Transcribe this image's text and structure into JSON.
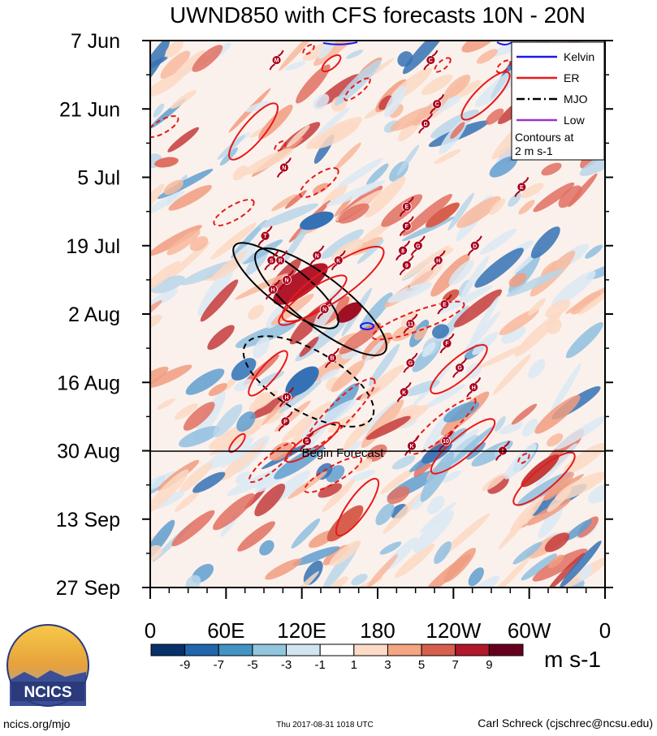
{
  "chart_data": {
    "type": "heatmap",
    "title": "UWND850 with CFS forecasts  10N - 20N",
    "x_range_deg": [
      0,
      360
    ],
    "x_ticks": [
      {
        "deg": 0,
        "label": "0"
      },
      {
        "deg": 60,
        "label": "60E"
      },
      {
        "deg": 120,
        "label": "120E"
      },
      {
        "deg": 180,
        "label": "180"
      },
      {
        "deg": 240,
        "label": "120W"
      },
      {
        "deg": 300,
        "label": "60W"
      },
      {
        "deg": 360,
        "label": "0"
      }
    ],
    "y_range": [
      "2017-06-07",
      "2017-09-27"
    ],
    "y_ticks": [
      {
        "date": "2017-06-07",
        "label": "7 Jun"
      },
      {
        "date": "2017-06-21",
        "label": "21 Jun"
      },
      {
        "date": "2017-07-05",
        "label": "5 Jul"
      },
      {
        "date": "2017-07-19",
        "label": "19 Jul"
      },
      {
        "date": "2017-08-02",
        "label": "2 Aug"
      },
      {
        "date": "2017-08-16",
        "label": "16 Aug"
      },
      {
        "date": "2017-08-30",
        "label": "30 Aug"
      },
      {
        "date": "2017-09-13",
        "label": "13 Sep"
      },
      {
        "date": "2017-09-27",
        "label": "27 Sep"
      }
    ],
    "forecast_start": {
      "date": "2017-08-30",
      "label": "Begin Forecast"
    },
    "legend": {
      "position": "top-right",
      "entries": [
        {
          "label": "Kelvin",
          "color": "#1a1ae6",
          "dash": "solid"
        },
        {
          "label": "ER",
          "color": "#e61a1a",
          "dash": "solid"
        },
        {
          "label": "MJO",
          "color": "#000000",
          "dash": "dashdot"
        },
        {
          "label": "Low",
          "color": "#9933cc",
          "dash": "solid"
        }
      ],
      "note_lines": [
        "Contours at",
        "2 m s-1"
      ]
    },
    "colorbar": {
      "unit": "m s-1",
      "labels": [
        "-9",
        "-7",
        "-5",
        "-3",
        "-1",
        "1",
        "3",
        "5",
        "7",
        "9"
      ],
      "colors": [
        "#08306b",
        "#2166ac",
        "#4393c3",
        "#92c5de",
        "#d1e5f0",
        "#ffffff",
        "#fddbc7",
        "#f4a582",
        "#d6604d",
        "#b2182b",
        "#67001f"
      ]
    },
    "storm_markers": [
      {
        "letter": "M",
        "deg": 100,
        "date": "2017-06-11"
      },
      {
        "letter": "C",
        "deg": 222,
        "date": "2017-06-11"
      },
      {
        "letter": "C",
        "deg": 227,
        "date": "2017-06-20"
      },
      {
        "letter": "D",
        "deg": 218,
        "date": "2017-06-24"
      },
      {
        "letter": "N",
        "deg": 106,
        "date": "2017-07-03"
      },
      {
        "letter": "E",
        "deg": 294,
        "date": "2017-07-07"
      },
      {
        "letter": "E",
        "deg": 203,
        "date": "2017-07-11"
      },
      {
        "letter": "F",
        "deg": 203,
        "date": "2017-07-15"
      },
      {
        "letter": "T",
        "deg": 91,
        "date": "2017-07-17"
      },
      {
        "letter": "G",
        "deg": 212,
        "date": "2017-07-19"
      },
      {
        "letter": "D",
        "deg": 257,
        "date": "2017-07-19"
      },
      {
        "letter": "8",
        "deg": 200,
        "date": "2017-07-20"
      },
      {
        "letter": "N",
        "deg": 132,
        "date": "2017-07-21"
      },
      {
        "letter": "K",
        "deg": 149,
        "date": "2017-07-22"
      },
      {
        "letter": "S",
        "deg": 96,
        "date": "2017-07-22"
      },
      {
        "letter": "R",
        "deg": 103,
        "date": "2017-07-22"
      },
      {
        "letter": "H",
        "deg": 228,
        "date": "2017-07-22"
      },
      {
        "letter": "9",
        "deg": 203,
        "date": "2017-07-23"
      },
      {
        "letter": "N",
        "deg": 108,
        "date": "2017-07-26"
      },
      {
        "letter": "H",
        "deg": 97,
        "date": "2017-07-28"
      },
      {
        "letter": "E",
        "deg": 233,
        "date": "2017-07-31"
      },
      {
        "letter": "N",
        "deg": 138,
        "date": "2017-08-01"
      },
      {
        "letter": "11",
        "deg": 206,
        "date": "2017-08-04"
      },
      {
        "letter": "F",
        "deg": 235,
        "date": "2017-08-08"
      },
      {
        "letter": "B",
        "deg": 144,
        "date": "2017-08-11"
      },
      {
        "letter": "G",
        "deg": 206,
        "date": "2017-08-12"
      },
      {
        "letter": "G",
        "deg": 245,
        "date": "2017-08-13"
      },
      {
        "letter": "H",
        "deg": 256,
        "date": "2017-08-17"
      },
      {
        "letter": "K",
        "deg": 201,
        "date": "2017-08-18"
      },
      {
        "letter": "H",
        "deg": 108,
        "date": "2017-08-19"
      },
      {
        "letter": "P",
        "deg": 107,
        "date": "2017-08-24"
      },
      {
        "letter": "S",
        "deg": 124,
        "date": "2017-08-28"
      },
      {
        "letter": "10",
        "deg": 234,
        "date": "2017-08-28"
      },
      {
        "letter": "K",
        "deg": 207,
        "date": "2017-08-29"
      },
      {
        "letter": "I",
        "deg": 279,
        "date": "2017-08-30"
      }
    ]
  },
  "logo": {
    "text": "NCICS"
  },
  "footer": {
    "left": "ncics.org/mjo",
    "center": "Thu 2017-08-31 1018 UTC",
    "right": "Carl Schreck (cjschrec@ncsu.edu)"
  },
  "colors": {
    "kelvin": "#1a1ae6",
    "er": "#e61a1a",
    "mjo": "#000000",
    "low": "#9933cc",
    "storm_marker": "#a8001a"
  }
}
